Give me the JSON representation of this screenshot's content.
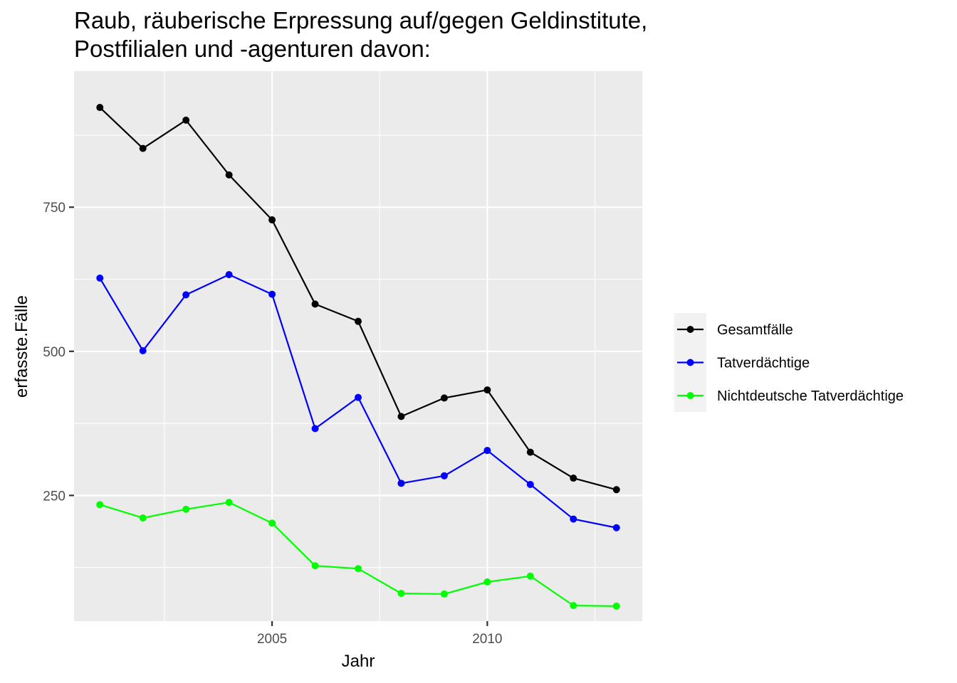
{
  "chart_data": {
    "type": "line",
    "title_line1": "Raub, räuberische Erpressung auf/gegen Geldinstitute,",
    "title_line2": "Postfilialen und -agenturen davon:",
    "xlabel": "Jahr",
    "ylabel": "erfasste.Fälle",
    "x": [
      2001,
      2002,
      2003,
      2004,
      2005,
      2006,
      2007,
      2008,
      2009,
      2010,
      2011,
      2012,
      2013
    ],
    "xlim": [
      2000.4,
      2013.6
    ],
    "ylim": [
      32,
      986
    ],
    "x_ticks": [
      2005,
      2010
    ],
    "x_tick_labels": [
      "2005",
      "2010"
    ],
    "x_minor_ticks": [
      2002.5,
      2007.5,
      2012.5
    ],
    "y_ticks": [
      250,
      500,
      750
    ],
    "y_tick_labels": [
      "250",
      "500",
      "750"
    ],
    "y_minor_ticks": [
      125,
      375,
      625,
      875
    ],
    "grid": true,
    "legend_position": "right",
    "series": [
      {
        "name": "Gesamtfälle",
        "color": "#000000",
        "values": [
          923,
          852,
          901,
          806,
          728,
          582,
          552,
          387,
          419,
          433,
          325,
          280,
          260
        ]
      },
      {
        "name": "Tatverdächtige",
        "color": "#0000ff",
        "values": [
          627,
          501,
          598,
          633,
          599,
          366,
          420,
          271,
          284,
          328,
          269,
          209,
          194
        ]
      },
      {
        "name": "Nichtdeutsche Tatverdächtige",
        "color": "#00ff00",
        "values": [
          234,
          211,
          226,
          238,
          202,
          128,
          123,
          80,
          79,
          100,
          110,
          59,
          58
        ]
      }
    ]
  }
}
